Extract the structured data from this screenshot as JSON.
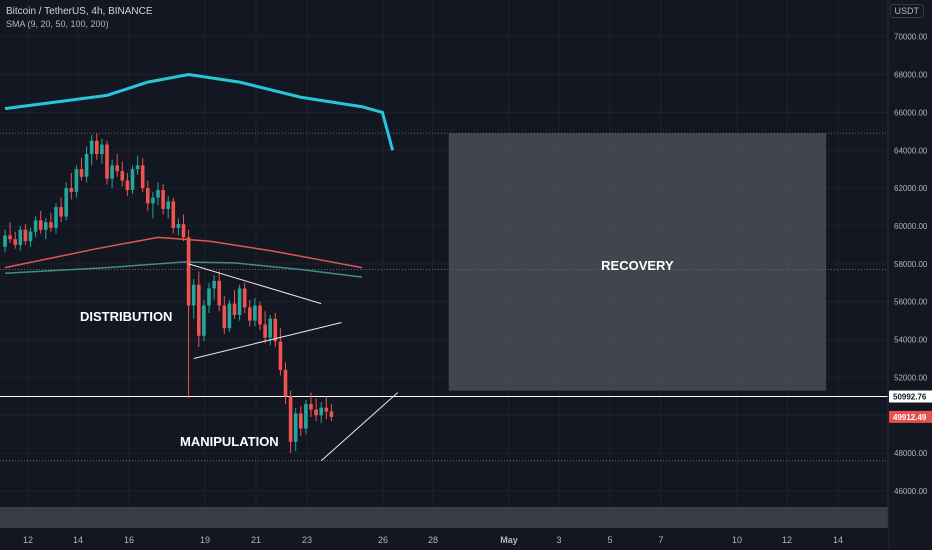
{
  "header": {
    "symbol_line": "Bitcoin / TetherUS, 4h, BINANCE",
    "indicator_line": "SMA (9, 20, 50, 100, 200)",
    "currency_badge": "USDT"
  },
  "colors": {
    "background": "#131722",
    "up": "#26a69a",
    "down": "#ef5350",
    "ma_cyan": "#26c6da",
    "ma_red": "#e0574f",
    "ma_teal": "#3d8f84",
    "grid": "#1e222d",
    "zone": "#4a4d55"
  },
  "annotations": {
    "distribution": "DISTRIBUTION",
    "manipulation": "MANIPULATION",
    "recovery": "RECOVERY"
  },
  "chart_data": {
    "type": "candlestick",
    "ylim": [
      45000,
      71500
    ],
    "y_ticks": [
      46000,
      48000,
      50000,
      52000,
      54000,
      56000,
      58000,
      60000,
      62000,
      64000,
      66000,
      68000,
      70000
    ],
    "x_ticks": [
      "12",
      "14",
      "16",
      "19",
      "21",
      "23",
      "26",
      "28",
      "May",
      "3",
      "5",
      "7",
      "10",
      "12",
      "14"
    ],
    "price_labels": [
      {
        "value": 50992.76,
        "text": "50992.76",
        "kind": "line"
      },
      {
        "value": 49912.49,
        "text": "49912.49",
        "kind": "last"
      }
    ],
    "ohlc": [
      [
        58900,
        59800,
        58600,
        59500
      ],
      [
        59500,
        60200,
        59100,
        59300
      ],
      [
        59300,
        59700,
        58800,
        59000
      ],
      [
        59000,
        60000,
        58700,
        59800
      ],
      [
        59800,
        60100,
        59000,
        59200
      ],
      [
        59200,
        59900,
        58900,
        59700
      ],
      [
        59700,
        60500,
        59400,
        60300
      ],
      [
        60300,
        60800,
        59600,
        59800
      ],
      [
        59800,
        60400,
        59300,
        60200
      ],
      [
        60200,
        60700,
        59700,
        59900
      ],
      [
        59900,
        61200,
        59600,
        61000
      ],
      [
        61000,
        61500,
        60200,
        60500
      ],
      [
        60500,
        62300,
        60300,
        62000
      ],
      [
        62000,
        62800,
        61400,
        61800
      ],
      [
        61800,
        63200,
        61500,
        63000
      ],
      [
        63000,
        63600,
        62400,
        62600
      ],
      [
        62600,
        64200,
        62300,
        63800
      ],
      [
        63800,
        64800,
        63200,
        64500
      ],
      [
        64500,
        64900,
        63500,
        63800
      ],
      [
        63800,
        64600,
        63300,
        64300
      ],
      [
        64300,
        64500,
        62200,
        62500
      ],
      [
        62500,
        63500,
        62000,
        63200
      ],
      [
        63200,
        63800,
        62600,
        62900
      ],
      [
        62900,
        63400,
        62100,
        62400
      ],
      [
        62400,
        62800,
        61600,
        61900
      ],
      [
        61900,
        63200,
        61700,
        63000
      ],
      [
        63000,
        63700,
        62700,
        63200
      ],
      [
        63200,
        63600,
        61800,
        62000
      ],
      [
        62000,
        62400,
        60800,
        61200
      ],
      [
        61200,
        61800,
        60400,
        61500
      ],
      [
        61500,
        62300,
        61100,
        61900
      ],
      [
        61900,
        62200,
        60600,
        60900
      ],
      [
        60900,
        61600,
        60400,
        61300
      ],
      [
        61300,
        61500,
        59600,
        59900
      ],
      [
        59900,
        60400,
        59500,
        60100
      ],
      [
        60100,
        60600,
        59200,
        59400
      ],
      [
        59400,
        59800,
        50900,
        55800
      ],
      [
        55800,
        57200,
        55100,
        56900
      ],
      [
        56900,
        57600,
        53600,
        54200
      ],
      [
        54200,
        56100,
        53900,
        55800
      ],
      [
        55800,
        57000,
        55400,
        56700
      ],
      [
        56700,
        57400,
        56100,
        57100
      ],
      [
        57100,
        57600,
        55500,
        55800
      ],
      [
        55800,
        56300,
        54300,
        54600
      ],
      [
        54600,
        56100,
        54400,
        55900
      ],
      [
        55900,
        56600,
        55100,
        55300
      ],
      [
        55300,
        56900,
        55000,
        56700
      ],
      [
        56700,
        57000,
        55400,
        55700
      ],
      [
        55700,
        56100,
        54700,
        55000
      ],
      [
        55000,
        56200,
        54700,
        55800
      ],
      [
        55800,
        56000,
        54500,
        54800
      ],
      [
        54800,
        55500,
        53800,
        54100
      ],
      [
        54100,
        55300,
        53700,
        55100
      ],
      [
        55100,
        55400,
        53600,
        53900
      ],
      [
        53900,
        54600,
        52100,
        52400
      ],
      [
        52400,
        52800,
        50600,
        51000
      ],
      [
        51000,
        51300,
        48000,
        48600
      ],
      [
        48600,
        50400,
        48100,
        50100
      ],
      [
        50100,
        50500,
        48900,
        49300
      ],
      [
        49300,
        50800,
        49000,
        50600
      ],
      [
        50600,
        51200,
        49900,
        50300
      ],
      [
        50300,
        50900,
        49700,
        50000
      ],
      [
        50000,
        50700,
        49600,
        50400
      ],
      [
        50400,
        51000,
        49800,
        50200
      ],
      [
        50200,
        50600,
        49700,
        49912
      ]
    ],
    "moving_averages": [
      {
        "points": [
          [
            0,
            66200
          ],
          [
            20,
            66900
          ],
          [
            28,
            67600
          ],
          [
            36,
            68000
          ],
          [
            46,
            67600
          ],
          [
            58,
            66800
          ],
          [
            70,
            66300
          ],
          [
            74,
            66000
          ],
          [
            76,
            64000
          ]
        ]
      },
      {
        "points": [
          [
            0,
            57800
          ],
          [
            18,
            58800
          ],
          [
            30,
            59400
          ],
          [
            40,
            59200
          ],
          [
            52,
            58700
          ],
          [
            62,
            58200
          ],
          [
            70,
            57800
          ]
        ]
      },
      {
        "points": [
          [
            0,
            57500
          ],
          [
            20,
            57800
          ],
          [
            35,
            58100
          ],
          [
            45,
            58050
          ],
          [
            58,
            57700
          ],
          [
            70,
            57300
          ]
        ]
      }
    ],
    "trendlines": [
      {
        "from": [
          36,
          58000
        ],
        "to": [
          62,
          55900
        ]
      },
      {
        "from": [
          37,
          53000
        ],
        "to": [
          66,
          54900
        ]
      },
      {
        "from": [
          62,
          47600
        ],
        "to": [
          77,
          51200
        ]
      }
    ],
    "horizontal_lines": [
      {
        "value": 50992.76,
        "style": "solid"
      },
      {
        "value": 64900,
        "style": "dotted"
      },
      {
        "value": 57700,
        "style": "dotted"
      },
      {
        "value": 47600,
        "style": "dotted"
      }
    ],
    "zones": [
      {
        "x_from": 87,
        "x_to": 161,
        "y_low": 51300,
        "y_high": 64900,
        "label": "RECOVERY"
      }
    ]
  }
}
